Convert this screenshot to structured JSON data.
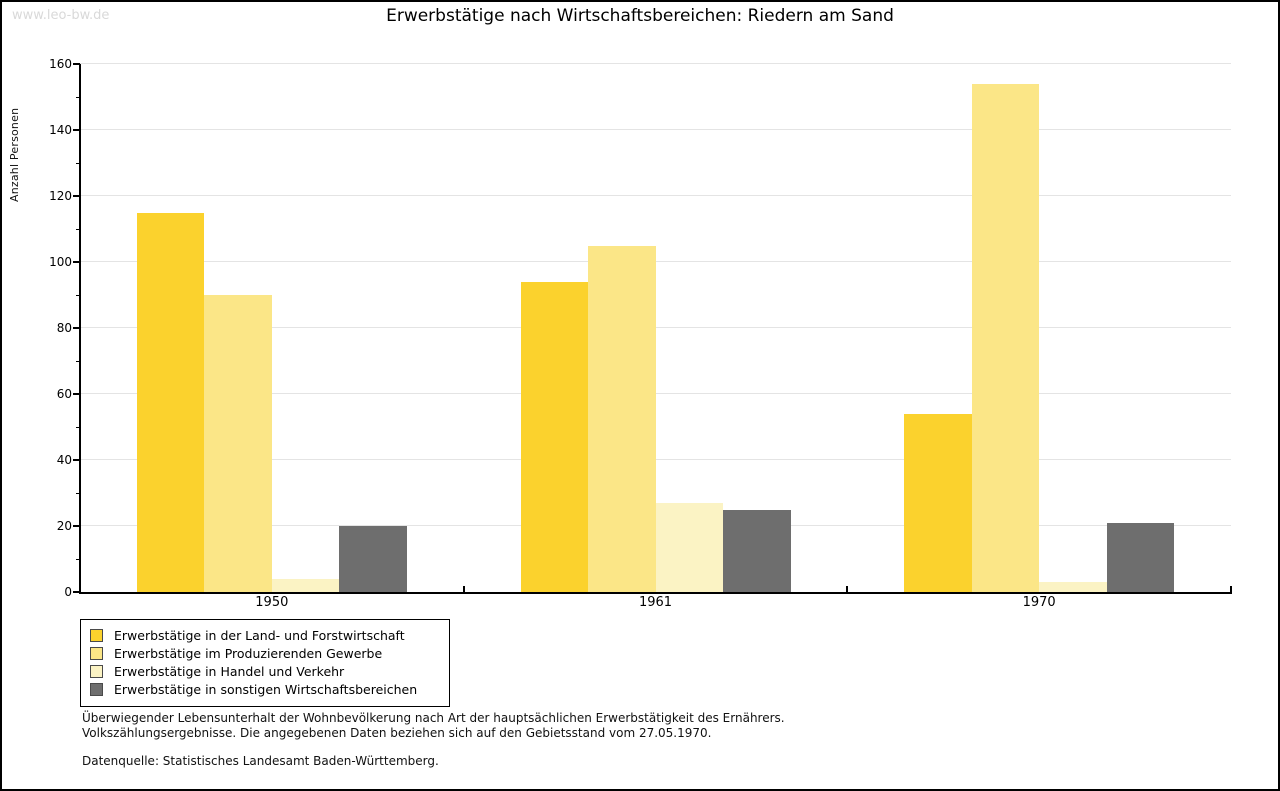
{
  "watermark": "www.leo-bw.de",
  "title": "Erwerbstätige nach Wirtschaftsbereichen: Riedern am Sand",
  "chart_data": {
    "type": "bar",
    "title": "Erwerbstätige nach Wirtschaftsbereichen: Riedern am Sand",
    "xlabel": "",
    "ylabel": "Anzahl Personen",
    "categories": [
      "1950",
      "1961",
      "1970"
    ],
    "series": [
      {
        "name": "Erwerbstätige in der Land- und Forstwirtschaft",
        "color": "#fbd22d",
        "values": [
          115,
          94,
          54
        ]
      },
      {
        "name": "Erwerbstätige im Produzierenden Gewerbe",
        "color": "#fbe687",
        "values": [
          90,
          105,
          154
        ]
      },
      {
        "name": "Erwerbstätige in Handel und Verkehr",
        "color": "#fbf3c4",
        "values": [
          4,
          27,
          3
        ]
      },
      {
        "name": "Erwerbstätige in sonstigen Wirtschaftsbereichen",
        "color": "#6e6e6e",
        "values": [
          20,
          25,
          21
        ]
      }
    ],
    "ylim": [
      0,
      160
    ],
    "ytick_step": 20,
    "ytick_minor_step": 10,
    "grid": true,
    "grid_color": "#e4e4e4",
    "axis_color": "#000000",
    "legend_position": "bottom-left"
  },
  "footer": {
    "note_line1": "Überwiegender Lebensunterhalt der Wohnbevölkerung nach Art der hauptsächlichen Erwerbstätigkeit des Ernährers.",
    "note_line2": "Volkszählungsergebnisse. Die angegebenen Daten beziehen sich auf den Gebietsstand vom 27.05.1970.",
    "source": "Datenquelle: Statistisches Landesamt Baden-Württemberg."
  }
}
